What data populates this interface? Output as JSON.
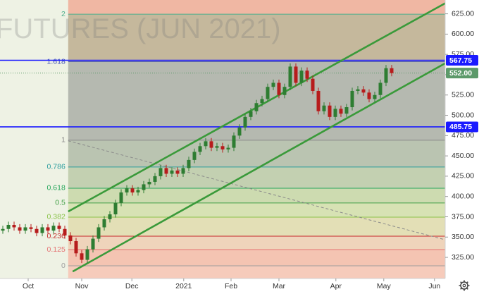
{
  "chart_data": {
    "type": "candlestick",
    "watermark": "FUTURES (JUN 2021)",
    "categories": [
      null,
      null,
      null,
      null,
      null,
      null,
      null,
      null,
      null,
      null,
      null,
      null,
      null,
      null,
      null,
      null,
      null,
      null,
      null,
      null,
      null,
      null,
      null,
      null,
      null,
      null,
      null,
      null,
      null,
      null,
      null,
      null,
      null,
      null,
      null,
      null,
      null,
      null,
      null,
      null,
      null,
      null,
      null,
      null,
      null,
      null,
      null,
      null,
      null,
      null,
      null,
      null,
      null,
      null,
      null,
      null,
      null,
      null,
      null,
      null,
      null,
      null,
      null,
      null,
      null,
      null,
      null,
      null,
      null,
      null
    ],
    "open": [
      358,
      360,
      365,
      362,
      358,
      362,
      360,
      355,
      362,
      358,
      364,
      360,
      352,
      345,
      330,
      322,
      335,
      348,
      362,
      372,
      378,
      392,
      405,
      410,
      405,
      408,
      415,
      418,
      425,
      435,
      428,
      432,
      428,
      435,
      445,
      455,
      462,
      468,
      460,
      462,
      458,
      460,
      475,
      485,
      498,
      505,
      515,
      520,
      535,
      540,
      525,
      535,
      560,
      540,
      555,
      545,
      530,
      505,
      512,
      498,
      508,
      502,
      510,
      530,
      532,
      528,
      520,
      525,
      540,
      558
    ],
    "high": [
      364,
      369,
      369,
      366,
      366,
      366,
      364,
      366,
      366,
      368,
      368,
      364,
      356,
      349,
      334,
      339,
      352,
      366,
      376,
      382,
      396,
      409,
      414,
      414,
      412,
      419,
      422,
      429,
      439,
      439,
      436,
      436,
      439,
      449,
      459,
      466,
      472,
      472,
      466,
      466,
      464,
      479,
      489,
      502,
      509,
      519,
      524,
      539,
      544,
      544,
      539,
      564,
      564,
      559,
      559,
      549,
      534,
      516,
      516,
      512,
      512,
      514,
      534,
      536,
      536,
      532,
      529,
      544,
      562,
      562
    ],
    "low": [
      354,
      356,
      358,
      354,
      354,
      356,
      351,
      351,
      354,
      354,
      356,
      348,
      341,
      326,
      318,
      318,
      331,
      344,
      358,
      368,
      374,
      388,
      401,
      401,
      401,
      404,
      411,
      414,
      421,
      424,
      424,
      424,
      424,
      431,
      441,
      451,
      458,
      456,
      456,
      454,
      454,
      456,
      471,
      481,
      494,
      501,
      511,
      516,
      531,
      521,
      521,
      531,
      536,
      536,
      541,
      526,
      501,
      501,
      494,
      494,
      498,
      498,
      506,
      526,
      524,
      516,
      516,
      521,
      536,
      548
    ],
    "close": [
      360,
      365,
      362,
      358,
      362,
      360,
      355,
      362,
      358,
      364,
      360,
      352,
      345,
      330,
      322,
      335,
      348,
      362,
      372,
      378,
      392,
      405,
      410,
      405,
      408,
      415,
      418,
      425,
      435,
      428,
      432,
      428,
      435,
      445,
      455,
      462,
      468,
      460,
      462,
      458,
      460,
      475,
      485,
      498,
      505,
      515,
      520,
      535,
      540,
      525,
      535,
      560,
      540,
      555,
      545,
      530,
      505,
      512,
      498,
      508,
      502,
      510,
      530,
      532,
      528,
      520,
      525,
      540,
      558,
      552
    ],
    "up_color": "#2e7d32",
    "down_color": "#b71c1c",
    "xlim": [
      -0.5,
      78.5
    ],
    "xticks": [
      {
        "value": 4.5,
        "label": "Oct"
      },
      {
        "value": 14,
        "label": "Nov"
      },
      {
        "value": 22.9,
        "label": "Dec"
      },
      {
        "value": 32.1,
        "label": "2021"
      },
      {
        "value": 40.5,
        "label": "Feb"
      },
      {
        "value": 49,
        "label": "Mar"
      },
      {
        "value": 59.1,
        "label": "Apr"
      },
      {
        "value": 67.6,
        "label": "May"
      },
      {
        "value": 76.6,
        "label": "Jun"
      }
    ],
    "ylim": [
      299,
      642
    ],
    "yticks": [
      {
        "value": 325,
        "label": "325.00"
      },
      {
        "value": 350,
        "label": "350.00"
      },
      {
        "value": 375,
        "label": "375.00"
      },
      {
        "value": 400,
        "label": "400.00"
      },
      {
        "value": 425,
        "label": "425.00"
      },
      {
        "value": 450,
        "label": "450.00"
      },
      {
        "value": 475,
        "label": "475.00"
      },
      {
        "value": 500,
        "label": "500.00"
      },
      {
        "value": 525,
        "label": "525.00"
      },
      {
        "value": 550,
        "label": "550.00"
      },
      {
        "value": 575,
        "label": "575.00"
      },
      {
        "value": 600,
        "label": "600.00"
      },
      {
        "value": 625,
        "label": "625.00"
      }
    ],
    "fibonacci": {
      "start": 11.6,
      "levels": [
        {
          "ratio": 0,
          "price": 314.6,
          "color": "#9e9e9e"
        },
        {
          "ratio": 0.125,
          "price": 334.6,
          "color": "#e57373"
        },
        {
          "ratio": 0.236,
          "price": 351.1,
          "color": "#c62828"
        },
        {
          "ratio": 0.382,
          "price": 374.6,
          "color": "#8bc34a"
        },
        {
          "ratio": 0.5,
          "price": 392,
          "color": "#43a047"
        },
        {
          "ratio": 0.618,
          "price": 410.2,
          "color": "#26a65b"
        },
        {
          "ratio": 0.786,
          "price": 436.3,
          "color": "#2a9d9d"
        },
        {
          "ratio": 1,
          "price": 469.3,
          "color": "#8a8a8a"
        },
        {
          "ratio": 1.618,
          "price": 566,
          "color": "#3f51b5"
        },
        {
          "ratio": 2,
          "price": 624.5,
          "color": "#4cae8c"
        }
      ],
      "band_colors": [
        "#f6cbbb",
        "#f4c4b2",
        "#efd4bb",
        "#e3dfb6",
        "#d7e2b4",
        "#cddbb0",
        "#c3d0b1",
        "#bac4b1",
        "#b5b9b0",
        "#c5b89c",
        "#f0b7a3"
      ]
    },
    "horizontal_lines": [
      {
        "value": 567.75,
        "label": "567.75",
        "color": "#1a1aff"
      },
      {
        "value": 485.75,
        "label": "485.75",
        "color": "#1a1aff"
      }
    ],
    "last_price": {
      "value": 552,
      "label": "552.00",
      "color": "#5c9a6a"
    },
    "channel": {
      "color": "#3a9a3a",
      "lines": [
        {
          "x": [
            11.6,
            78.5
          ],
          "y": [
            381.5,
            638
          ]
        },
        {
          "x": [
            12.4,
            78.5
          ],
          "y": [
            307.6,
            564.1
          ]
        }
      ]
    },
    "trend_line": {
      "x": [
        11.6,
        78.5
      ],
      "y": [
        468.5,
        346.7
      ],
      "color": "#8a8a8a"
    }
  }
}
